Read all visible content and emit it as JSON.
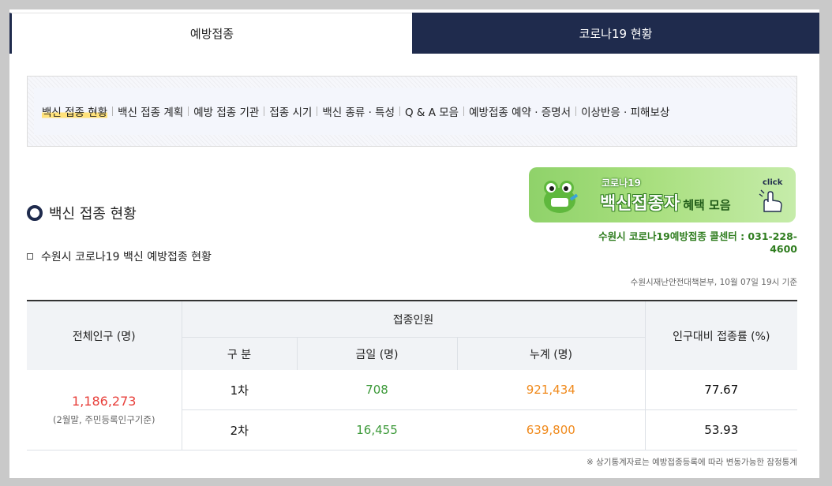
{
  "tabs": [
    {
      "label": "예방접종"
    },
    {
      "label": "코로나19 현황"
    }
  ],
  "subnav": [
    {
      "label": "백신 접종 현황"
    },
    {
      "label": "백신 접종 계획"
    },
    {
      "label": "예방 접종 기관"
    },
    {
      "label": "접종 시기"
    },
    {
      "label": "백신 종류 · 특성"
    },
    {
      "label": "Q & A 모음"
    },
    {
      "label": "예방접종 예약 · 증명서"
    },
    {
      "label": "이상반응 · 피해보상"
    }
  ],
  "section_title": "백신 접종 현황",
  "banner": {
    "small": "코로나19",
    "big": "백신접종자",
    "suffix": "혜택 모음",
    "click": "click"
  },
  "callcenter": "수원시 코로나19예방접종 콜센터 : 031-228-4600",
  "subtitle": "수원시 코로나19 백신 예방접종 현황",
  "source": "수원시재난안전대책본부, 10월 07일 19시 기준",
  "table": {
    "headers": {
      "population": "전체인구 (명)",
      "vaccinated": "접종인원",
      "rate": "인구대비 접종률 (%)",
      "category": "구 분",
      "today": "금일 (명)",
      "total": "누계 (명)"
    },
    "population": "1,186,273",
    "population_note": "(2월말, 주민등록인구기준)",
    "rows": [
      {
        "dose": "1차",
        "today": "708",
        "total": "921,434",
        "rate": "77.67"
      },
      {
        "dose": "2차",
        "today": "16,455",
        "total": "639,800",
        "rate": "53.93"
      }
    ]
  },
  "footnote": "※ 상기통계자료는 예방접종등록에 따라 변동가능한 잠정통계",
  "colors": {
    "navy": "#1f2b4d",
    "population_red": "#e8403b",
    "today_green": "#3d9a3a",
    "total_orange": "#f08a1c",
    "callcenter_green": "#2f7d1f"
  }
}
